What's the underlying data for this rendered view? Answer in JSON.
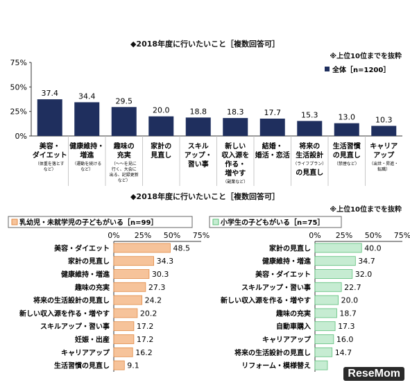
{
  "brand": "ReseMom",
  "top": {
    "title": "◆2018年度に行いたいこと［複数回答可］",
    "note": "※上位10位までを抜粋",
    "legend": "全体［n=1200］",
    "bar_color": "#1f2f5e"
  },
  "middle": {
    "title": "◆2018年度に行いたいこと［複数回答可］",
    "note": "※上位10位までを抜粋"
  },
  "chart_data": [
    {
      "type": "bar",
      "orientation": "vertical",
      "categories": [
        {
          "label": [
            "美容・",
            "ダイエット"
          ],
          "note": [
            "（体重を落とす",
            "など）"
          ]
        },
        {
          "label": [
            "健康維持・",
            "増進"
          ],
          "note": [
            "（運動を続ける",
            "など）"
          ]
        },
        {
          "label": [
            "趣味の",
            "充実"
          ],
          "note": [
            "（～～を見に",
            "行く、大会に",
            "出る、記録更新",
            "など）"
          ]
        },
        {
          "label": [
            "家計の",
            "見直し"
          ],
          "note": []
        },
        {
          "label": [
            "スキル",
            "アップ・",
            "習い事"
          ],
          "note": []
        },
        {
          "label": [
            "新しい",
            "収入源を",
            "作る・",
            "増やす"
          ],
          "note": [
            "（副業など）"
          ]
        },
        {
          "label": [
            "結婚・",
            "婚活・恋活"
          ],
          "note": []
        },
        {
          "label": [
            "将来の",
            "生活設計"
          ],
          "note": [
            "（ライフプラン）"
          ],
          "label2": "の見直し"
        },
        {
          "label": [
            "生活習慣",
            "の見直し"
          ],
          "note": [
            "（禁煙など）"
          ]
        },
        {
          "label": [
            "キャリア",
            "アップ"
          ],
          "note": [
            "（出世・昇進・",
            "転職）"
          ]
        }
      ],
      "series": [
        {
          "name": "全体［n=1200］",
          "values": [
            37.4,
            34.4,
            29.5,
            20.0,
            18.8,
            18.3,
            17.7,
            15.3,
            13.0,
            10.3
          ]
        }
      ],
      "value_labels": [
        "37.4",
        "34.4",
        "29.5",
        "20.0",
        "18.8",
        "18.3",
        "17.7",
        "15.3",
        "13.0",
        "10.3"
      ],
      "ylim": [
        0,
        75
      ],
      "yticks": [
        "0%",
        "25%",
        "50%",
        "75%"
      ],
      "legend": "top-right",
      "color": "#1f2f5e"
    },
    {
      "type": "bar",
      "orientation": "horizontal",
      "header": "乳幼児・未就学児の子どもがいる［n=99］",
      "categories": [
        "美容・ダイエット",
        "家計の見直し",
        "健康維持・増進",
        "趣味の充実",
        "将来の生活設計の見直し",
        "新しい収入源を作る・増やす",
        "スキルアップ・習い事",
        "妊娠・出産",
        "キャリアアップ",
        "生活習慣の見直し"
      ],
      "values": [
        48.5,
        34.3,
        30.3,
        27.3,
        24.2,
        20.2,
        17.2,
        17.2,
        16.2,
        9.1
      ],
      "value_labels": [
        "48.5",
        "34.3",
        "30.3",
        "27.3",
        "24.2",
        "20.2",
        "17.2",
        "17.2",
        "16.2",
        "9.1"
      ],
      "xlim": [
        0,
        75
      ],
      "xticks": [
        "0%",
        "25%",
        "50%",
        "75%"
      ],
      "color": "#f6c39a",
      "stroke": "#e08a45"
    },
    {
      "type": "bar",
      "orientation": "horizontal",
      "header": "小学生の子どもがいる［n=75］",
      "categories": [
        "家計の見直し",
        "健康維持・増進",
        "美容・ダイエット",
        "スキルアップ・習い事",
        "新しい収入源を作る・増やす",
        "趣味の充実",
        "自動車購入",
        "キャリアアップ",
        "将来の生活設計の見直し",
        "リフォーム・模様替え"
      ],
      "values": [
        40.0,
        34.7,
        32.0,
        22.7,
        20.0,
        18.7,
        17.3,
        16.0,
        14.7,
        10.7
      ],
      "value_labels": [
        "40.0",
        "34.7",
        "32.0",
        "22.7",
        "20.0",
        "18.7",
        "17.3",
        "16.0",
        "14.7",
        ""
      ],
      "xlim": [
        0,
        75
      ],
      "xticks": [
        "0%",
        "25%",
        "50%",
        "75%"
      ],
      "color": "#c6ecd2",
      "stroke": "#5cbf7a"
    }
  ]
}
